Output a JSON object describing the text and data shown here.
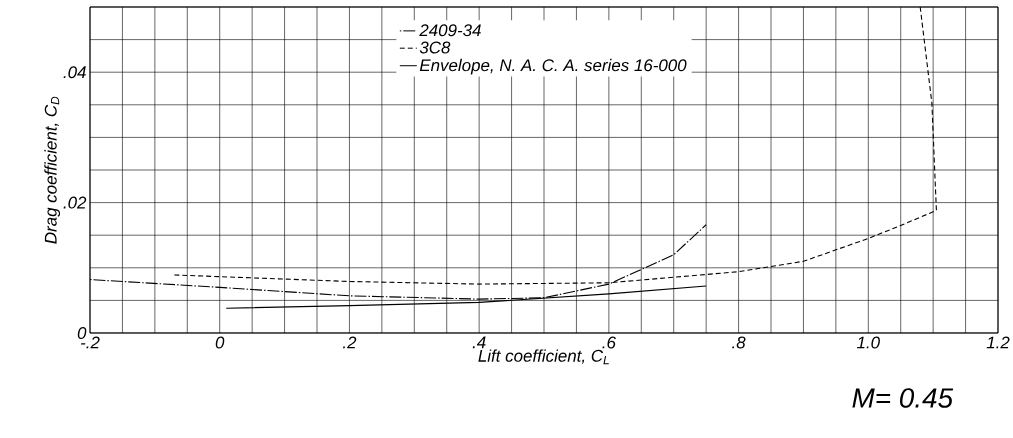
{
  "chart_data": {
    "type": "line",
    "xlabel": "Lift coefficient, C$_{L}$",
    "ylabel": "Drag coefficient, C$_{D}$",
    "annotations": [
      "M= 0.45"
    ],
    "xlim": [
      -0.2,
      1.2
    ],
    "ylim": [
      0,
      0.05
    ],
    "xticks": [
      {
        "value": -0.2,
        "label": "-.2"
      },
      {
        "value": -0.15,
        "label": null
      },
      {
        "value": -0.1,
        "label": null
      },
      {
        "value": -0.05,
        "label": null
      },
      0,
      {
        "value": 0.05,
        "label": null
      },
      {
        "value": 0.1,
        "label": null
      },
      {
        "value": 0.15,
        "label": null
      },
      {
        "value": 0.2,
        "label": ".2"
      },
      {
        "value": 0.25,
        "label": null
      },
      {
        "value": 0.3,
        "label": null
      },
      {
        "value": 0.35,
        "label": null
      },
      {
        "value": 0.4,
        "label": ".4"
      },
      {
        "value": 0.45,
        "label": null
      },
      {
        "value": 0.5,
        "label": null
      },
      {
        "value": 0.55,
        "label": null
      },
      {
        "value": 0.6,
        "label": ".6"
      },
      {
        "value": 0.65,
        "label": null
      },
      {
        "value": 0.7,
        "label": null
      },
      {
        "value": 0.75,
        "label": null
      },
      {
        "value": 0.8,
        "label": ".8"
      },
      {
        "value": 0.85,
        "label": null
      },
      {
        "value": 0.9,
        "label": null
      },
      {
        "value": 0.95,
        "label": null
      },
      {
        "value": 1.0,
        "label": "1.0"
      },
      {
        "value": 1.05,
        "label": null
      },
      {
        "value": 1.1,
        "label": null
      },
      {
        "value": 1.15,
        "label": null
      },
      {
        "value": 1.2,
        "label": "1.2"
      }
    ],
    "yticks": [
      0,
      {
        "value": 0.005,
        "label": null
      },
      {
        "value": 0.01,
        "label": null
      },
      {
        "value": 0.015,
        "label": null
      },
      {
        "value": 0.02,
        "label": ".02"
      },
      {
        "value": 0.025,
        "label": null
      },
      {
        "value": 0.03,
        "label": null
      },
      {
        "value": 0.035,
        "label": null
      },
      {
        "value": 0.04,
        "label": ".04"
      },
      {
        "value": 0.045,
        "label": null
      },
      {
        "value": 0.05,
        "label": null
      }
    ],
    "grid": true,
    "legend": "top",
    "marker": "none",
    "series": [
      {
        "name": "2409-34",
        "color": "#000000",
        "line_style": "dashdot",
        "x": [
          -0.2,
          0.0,
          0.2,
          0.4,
          0.5,
          0.6,
          0.7,
          0.75
        ],
        "values": [
          0.0082,
          0.007,
          0.0057,
          0.0052,
          0.0054,
          0.0075,
          0.012,
          0.0166
        ]
      },
      {
        "name": "3C8",
        "color": "#000000",
        "line_style": "dashed",
        "x": [
          -0.07,
          0.2,
          0.4,
          0.6,
          0.8,
          0.9,
          1.0,
          1.05,
          1.105,
          1.098,
          1.08
        ],
        "values": [
          0.0089,
          0.0079,
          0.0075,
          0.0077,
          0.0094,
          0.011,
          0.0145,
          0.0165,
          0.0188,
          0.0353,
          0.05
        ]
      },
      {
        "name": "Envelope, N. A. C. A. series 16-000",
        "color": "#000000",
        "line_style": "solid",
        "x": [
          0.01,
          0.2,
          0.4,
          0.6,
          0.75
        ],
        "values": [
          0.0038,
          0.0042,
          0.0047,
          0.006,
          0.0072
        ]
      }
    ]
  }
}
